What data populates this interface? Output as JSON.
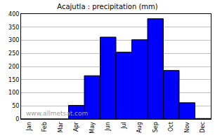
{
  "chart_data": {
    "type": "bar",
    "title": "Acajutla : precipitation (mm)",
    "categories": [
      "Jan",
      "Feb",
      "Mar",
      "Apr",
      "May",
      "Jun",
      "Jul",
      "Aug",
      "Sep",
      "Oct",
      "Nov",
      "Dec"
    ],
    "values": [
      0,
      0,
      0,
      52,
      165,
      312,
      255,
      302,
      382,
      185,
      62,
      2
    ],
    "color": "#0000ff",
    "ylim": [
      0,
      400
    ],
    "yticks": [
      0,
      50,
      100,
      150,
      200,
      250,
      300,
      350,
      400
    ],
    "grid": true,
    "annotations": [
      "www.allmetsat.com"
    ]
  }
}
